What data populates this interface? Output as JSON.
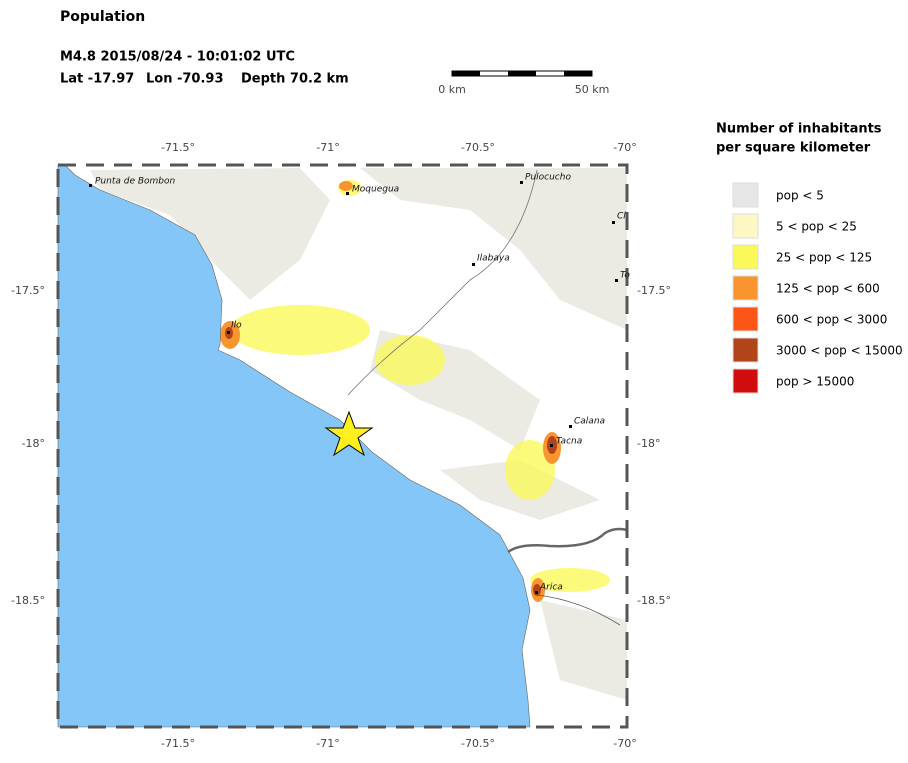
{
  "header": {
    "title": "Population",
    "event": "M4.8  2015/08/24 - 10:01:02 UTC",
    "location": {
      "lat": "Lat -17.97",
      "lon": "Lon -70.93",
      "depth": "Depth  70.2 km"
    }
  },
  "scale_bar": {
    "start": "0 km",
    "end": "50 km"
  },
  "map": {
    "lon_labels": [
      "-71.5°",
      "-71°",
      "-70.5°",
      "-70°"
    ],
    "lat_labels": [
      "-17.5°",
      "-18°",
      "-18.5°"
    ],
    "places": [
      "Punta de Bombon",
      "Moquegua",
      "Pulocucho",
      "Cl",
      "To",
      "Ilabaya",
      "Ilo",
      "Calana",
      "Tacna",
      "Arica"
    ]
  },
  "legend": {
    "title": [
      "Number of inhabitants",
      "per square kilometer"
    ],
    "items": [
      {
        "label": "pop < 5",
        "color": "#e6e6e6"
      },
      {
        "label": "5 < pop < 25",
        "color": "#fdf8c3"
      },
      {
        "label": "25 < pop < 125",
        "color": "#fbf95a"
      },
      {
        "label": "125 < pop < 600",
        "color": "#f9952f"
      },
      {
        "label": "600 < pop < 3000",
        "color": "#fb5618"
      },
      {
        "label": "3000 < pop < 15000",
        "color": "#b2441a"
      },
      {
        "label": "pop > 15000",
        "color": "#d10c0c"
      }
    ]
  }
}
